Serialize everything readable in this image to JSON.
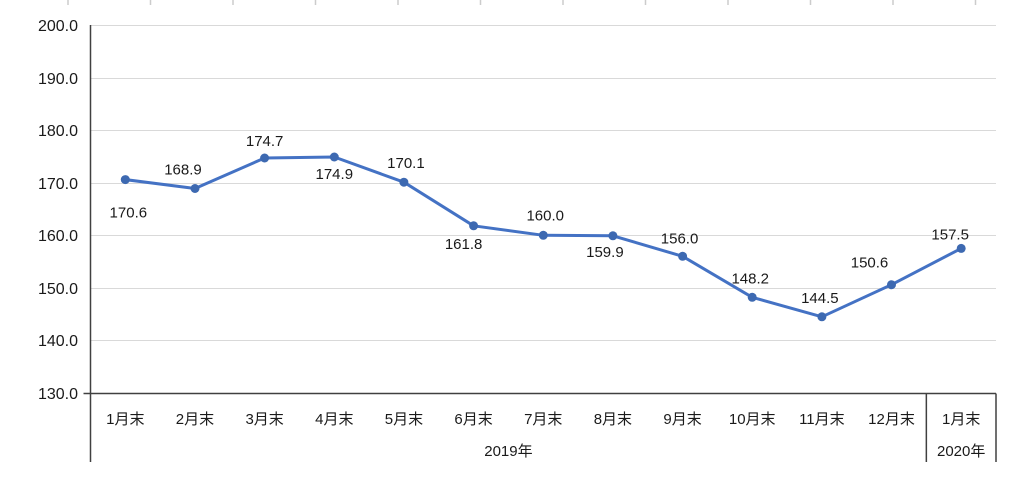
{
  "chart_data": {
    "type": "line",
    "title": "",
    "legend": null,
    "categories": [
      "1月末",
      "2月末",
      "3月末",
      "4月末",
      "5月末",
      "6月末",
      "7月末",
      "8月末",
      "9月末",
      "10月末",
      "11月末",
      "12月末",
      "1月末"
    ],
    "values": [
      170.6,
      168.9,
      174.7,
      174.9,
      170.1,
      161.8,
      160.0,
      159.9,
      156.0,
      148.2,
      144.5,
      150.6,
      157.5
    ],
    "data_labels": [
      "170.6",
      "168.9",
      "174.7",
      "174.9",
      "170.1",
      "161.8",
      "160.0",
      "159.9",
      "156.0",
      "148.2",
      "144.5",
      "150.6",
      "157.5"
    ],
    "label_placement": [
      "below",
      "above",
      "above",
      "below",
      "above",
      "below",
      "above",
      "below",
      "above",
      "above",
      "above",
      "above",
      "above"
    ],
    "label_dx": [
      3,
      -12,
      0,
      0,
      2,
      -10,
      2,
      -8,
      -3,
      -2,
      -2,
      -22,
      -11
    ],
    "label_dy": [
      38,
      -14,
      -12,
      22,
      -14,
      23,
      -15,
      21,
      -13,
      -14,
      -14,
      -17,
      -9
    ],
    "year_groups": [
      {
        "label": "2019年",
        "start": 0,
        "end": 11
      },
      {
        "label": "2020年",
        "start": 12,
        "end": 12
      }
    ],
    "y_ticks": [
      "200.0",
      "190.0",
      "180.0",
      "170.0",
      "160.0",
      "150.0",
      "140.0",
      "130.0"
    ],
    "ylim": [
      130,
      200
    ],
    "xlabel": "",
    "ylabel": "",
    "grid": true,
    "legend_position": "none",
    "colors": {
      "line": "#4472C4",
      "marker": "#3D69B1",
      "gridline": "#D9D9D9",
      "axis": "#404040",
      "data_label": "#1A1A1A",
      "tick_label": "#1A1A1A",
      "top_tick": "#CCCCCC"
    }
  }
}
